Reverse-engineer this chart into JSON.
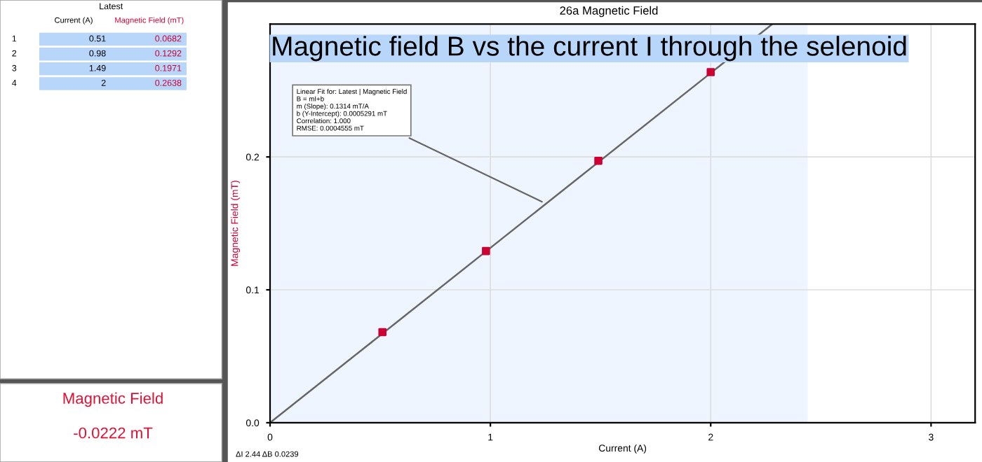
{
  "chart_data": {
    "type": "scatter",
    "title": "26a Magnetic Field",
    "xlabel": "Current (A)",
    "ylabel": "Magnetic Field (mT)",
    "x": [
      0.51,
      0.98,
      1.49,
      2
    ],
    "series": [
      {
        "color": "#cc0033",
        "values": [
          0.0682,
          0.1292,
          0.1971,
          0.2638
        ],
        "marker": "square"
      },
      {
        "type": "line",
        "color": "#666666",
        "x": [
          0,
          2.28
        ],
        "values": [
          0,
          0.3
        ],
        "marker": "none"
      }
    ],
    "xlim": [
      0,
      3.2
    ],
    "ylim": [
      0,
      0.3
    ],
    "xticks": [
      0,
      1,
      2,
      3
    ],
    "yticks": [
      {
        "value": 0,
        "label": "0.0"
      },
      0.1,
      0.2
    ],
    "grid": true,
    "legend": false,
    "bands": [
      {
        "axis": "x",
        "from": 0,
        "to": 2.44,
        "color": "#eef5fe"
      }
    ],
    "annotations": [
      "Magnetic field B vs the current I through the selenoid",
      {
        "text": "Linear Fit for: Latest | Magnetic Field\nB = mI+b\nm (Slope): 0.1314 mT/A\nb (Y-Intercept): 0.0005291 mT\nCorrelation: 1.000\nRMSE: 0.0004555 mT",
        "x": 1.25,
        "y": 0.165
      },
      "ΔI 2.44 ΔB 0.0239",
      "Latest",
      "Current (A)",
      "Magnetic Field (mT)",
      "1",
      "0.51",
      "0.0682",
      "2",
      "0.98",
      "0.1292",
      "3",
      "1.49",
      "0.1971",
      "4",
      "2",
      "0.2638",
      "Magnetic Field",
      "-0.0222 mT"
    ]
  }
}
